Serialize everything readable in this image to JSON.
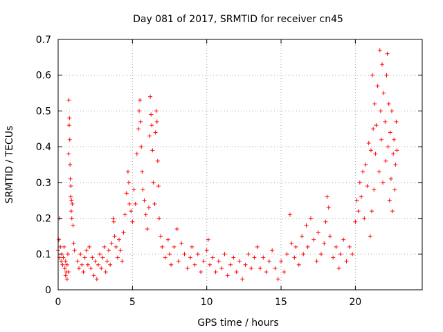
{
  "chart_data": {
    "type": "scatter",
    "title": "Day 081 of 2017, SRMTID for receiver cn45",
    "xlabel": "GPS time / hours",
    "ylabel": "SRMTID / TECUs",
    "xlim": [
      0,
      24.5
    ],
    "ylim": [
      0,
      0.7
    ],
    "grid": true,
    "marker": "+",
    "color": "#ff0000",
    "xticks": [
      0,
      5,
      10,
      15,
      20
    ],
    "xtick_labels": [
      "0",
      "5",
      "10",
      "15",
      "20"
    ],
    "yticks": [
      0,
      0.1,
      0.2,
      0.3,
      0.4,
      0.5,
      0.6,
      0.7
    ],
    "ytick_labels": [
      "0",
      "0.1",
      "0.2",
      "0.3",
      "0.4",
      "0.5",
      "0.6",
      "0.7"
    ],
    "series": [
      {
        "name": "cn45",
        "points": [
          [
            0.0,
            0.11
          ],
          [
            0.05,
            0.14
          ],
          [
            0.1,
            0.2
          ],
          [
            0.1,
            0.09
          ],
          [
            0.15,
            0.12
          ],
          [
            0.2,
            0.08
          ],
          [
            0.25,
            0.1
          ],
          [
            0.3,
            0.07
          ],
          [
            0.35,
            0.09
          ],
          [
            0.4,
            0.12
          ],
          [
            0.45,
            0.06
          ],
          [
            0.5,
            0.08
          ],
          [
            0.5,
            0.04
          ],
          [
            0.55,
            0.05
          ],
          [
            0.6,
            0.03
          ],
          [
            0.6,
            0.07
          ],
          [
            0.65,
            0.1
          ],
          [
            0.7,
            0.05
          ],
          [
            0.7,
            0.38
          ],
          [
            0.72,
            0.53
          ],
          [
            0.74,
            0.46
          ],
          [
            0.76,
            0.48
          ],
          [
            0.78,
            0.42
          ],
          [
            0.8,
            0.35
          ],
          [
            0.82,
            0.31
          ],
          [
            0.84,
            0.26
          ],
          [
            0.86,
            0.29
          ],
          [
            0.88,
            0.22
          ],
          [
            0.9,
            0.25
          ],
          [
            0.92,
            0.2
          ],
          [
            0.95,
            0.24
          ],
          [
            1.0,
            0.18
          ],
          [
            1.05,
            0.13
          ],
          [
            1.1,
            0.11
          ],
          [
            1.3,
            0.08
          ],
          [
            1.4,
            0.06
          ],
          [
            1.5,
            0.1
          ],
          [
            1.6,
            0.07
          ],
          [
            1.7,
            0.05
          ],
          [
            1.8,
            0.09
          ],
          [
            1.9,
            0.11
          ],
          [
            2.0,
            0.07
          ],
          [
            2.1,
            0.12
          ],
          [
            2.2,
            0.06
          ],
          [
            2.3,
            0.09
          ],
          [
            2.4,
            0.04
          ],
          [
            2.5,
            0.08
          ],
          [
            2.6,
            0.03
          ],
          [
            2.7,
            0.07
          ],
          [
            2.8,
            0.1
          ],
          [
            2.9,
            0.06
          ],
          [
            3.0,
            0.09
          ],
          [
            3.1,
            0.12
          ],
          [
            3.2,
            0.05
          ],
          [
            3.3,
            0.08
          ],
          [
            3.4,
            0.11
          ],
          [
            3.5,
            0.07
          ],
          [
            3.6,
            0.13
          ],
          [
            3.7,
            0.2
          ],
          [
            3.75,
            0.19
          ],
          [
            3.8,
            0.15
          ],
          [
            3.9,
            0.12
          ],
          [
            4.0,
            0.09
          ],
          [
            4.1,
            0.14
          ],
          [
            4.2,
            0.11
          ],
          [
            4.3,
            0.08
          ],
          [
            4.4,
            0.16
          ],
          [
            4.5,
            0.21
          ],
          [
            4.6,
            0.27
          ],
          [
            4.7,
            0.33
          ],
          [
            4.75,
            0.3
          ],
          [
            4.8,
            0.24
          ],
          [
            4.9,
            0.22
          ],
          [
            5.0,
            0.19
          ],
          [
            5.1,
            0.28
          ],
          [
            5.2,
            0.24
          ],
          [
            5.3,
            0.38
          ],
          [
            5.4,
            0.45
          ],
          [
            5.45,
            0.5
          ],
          [
            5.5,
            0.53
          ],
          [
            5.55,
            0.47
          ],
          [
            5.6,
            0.4
          ],
          [
            5.65,
            0.33
          ],
          [
            5.7,
            0.28
          ],
          [
            5.8,
            0.25
          ],
          [
            5.9,
            0.21
          ],
          [
            6.0,
            0.17
          ],
          [
            6.1,
            0.23
          ],
          [
            6.15,
            0.43
          ],
          [
            6.2,
            0.54
          ],
          [
            6.25,
            0.49
          ],
          [
            6.3,
            0.46
          ],
          [
            6.35,
            0.39
          ],
          [
            6.4,
            0.3
          ],
          [
            6.5,
            0.24
          ],
          [
            6.55,
            0.44
          ],
          [
            6.6,
            0.5
          ],
          [
            6.65,
            0.47
          ],
          [
            6.7,
            0.36
          ],
          [
            6.75,
            0.29
          ],
          [
            6.8,
            0.2
          ],
          [
            6.9,
            0.15
          ],
          [
            7.0,
            0.12
          ],
          [
            7.2,
            0.09
          ],
          [
            7.4,
            0.14
          ],
          [
            7.5,
            0.1
          ],
          [
            7.6,
            0.07
          ],
          [
            7.8,
            0.12
          ],
          [
            8.0,
            0.17
          ],
          [
            8.1,
            0.08
          ],
          [
            8.3,
            0.13
          ],
          [
            8.5,
            0.1
          ],
          [
            8.7,
            0.06
          ],
          [
            8.9,
            0.09
          ],
          [
            9.0,
            0.12
          ],
          [
            9.2,
            0.07
          ],
          [
            9.4,
            0.1
          ],
          [
            9.6,
            0.05
          ],
          [
            9.8,
            0.08
          ],
          [
            10.0,
            0.11
          ],
          [
            10.1,
            0.14
          ],
          [
            10.2,
            0.07
          ],
          [
            10.4,
            0.09
          ],
          [
            10.6,
            0.05
          ],
          [
            10.8,
            0.08
          ],
          [
            11.0,
            0.06
          ],
          [
            11.2,
            0.1
          ],
          [
            11.4,
            0.04
          ],
          [
            11.6,
            0.07
          ],
          [
            11.8,
            0.09
          ],
          [
            12.0,
            0.05
          ],
          [
            12.2,
            0.08
          ],
          [
            12.4,
            0.03
          ],
          [
            12.6,
            0.07
          ],
          [
            12.8,
            0.1
          ],
          [
            13.0,
            0.06
          ],
          [
            13.2,
            0.09
          ],
          [
            13.4,
            0.12
          ],
          [
            13.6,
            0.06
          ],
          [
            13.8,
            0.09
          ],
          [
            14.0,
            0.05
          ],
          [
            14.2,
            0.08
          ],
          [
            14.4,
            0.11
          ],
          [
            14.6,
            0.06
          ],
          [
            14.8,
            0.03
          ],
          [
            15.0,
            0.08
          ],
          [
            15.2,
            0.05
          ],
          [
            15.4,
            0.1
          ],
          [
            15.6,
            0.21
          ],
          [
            15.7,
            0.13
          ],
          [
            15.9,
            0.09
          ],
          [
            16.0,
            0.12
          ],
          [
            16.2,
            0.07
          ],
          [
            16.4,
            0.15
          ],
          [
            16.5,
            0.1
          ],
          [
            16.7,
            0.18
          ],
          [
            16.8,
            0.12
          ],
          [
            17.0,
            0.2
          ],
          [
            17.2,
            0.14
          ],
          [
            17.4,
            0.08
          ],
          [
            17.5,
            0.16
          ],
          [
            17.7,
            0.1
          ],
          [
            17.9,
            0.13
          ],
          [
            18.0,
            0.19
          ],
          [
            18.1,
            0.26
          ],
          [
            18.2,
            0.23
          ],
          [
            18.3,
            0.15
          ],
          [
            18.5,
            0.09
          ],
          [
            18.7,
            0.12
          ],
          [
            18.9,
            0.06
          ],
          [
            19.0,
            0.1
          ],
          [
            19.2,
            0.14
          ],
          [
            19.4,
            0.08
          ],
          [
            19.6,
            0.12
          ],
          [
            19.8,
            0.1
          ],
          [
            20.0,
            0.19
          ],
          [
            20.1,
            0.25
          ],
          [
            20.2,
            0.22
          ],
          [
            20.3,
            0.3
          ],
          [
            20.4,
            0.26
          ],
          [
            20.5,
            0.33
          ],
          [
            20.6,
            0.2
          ],
          [
            20.7,
            0.35
          ],
          [
            20.8,
            0.29
          ],
          [
            20.9,
            0.41
          ],
          [
            21.0,
            0.15
          ],
          [
            21.05,
            0.39
          ],
          [
            21.1,
            0.22
          ],
          [
            21.15,
            0.6
          ],
          [
            21.2,
            0.45
          ],
          [
            21.25,
            0.28
          ],
          [
            21.3,
            0.52
          ],
          [
            21.35,
            0.38
          ],
          [
            21.4,
            0.46
          ],
          [
            21.5,
            0.57
          ],
          [
            21.6,
            0.33
          ],
          [
            21.65,
            0.67
          ],
          [
            21.7,
            0.5
          ],
          [
            21.75,
            0.42
          ],
          [
            21.8,
            0.63
          ],
          [
            21.85,
            0.3
          ],
          [
            21.9,
            0.55
          ],
          [
            22.0,
            0.47
          ],
          [
            22.05,
            0.36
          ],
          [
            22.1,
            0.6
          ],
          [
            22.15,
            0.66
          ],
          [
            22.2,
            0.4
          ],
          [
            22.25,
            0.52
          ],
          [
            22.3,
            0.25
          ],
          [
            22.35,
            0.44
          ],
          [
            22.4,
            0.31
          ],
          [
            22.45,
            0.5
          ],
          [
            22.5,
            0.22
          ],
          [
            22.55,
            0.38
          ],
          [
            22.6,
            0.42
          ],
          [
            22.65,
            0.28
          ],
          [
            22.7,
            0.35
          ],
          [
            22.75,
            0.47
          ],
          [
            22.8,
            0.39
          ]
        ]
      }
    ]
  }
}
